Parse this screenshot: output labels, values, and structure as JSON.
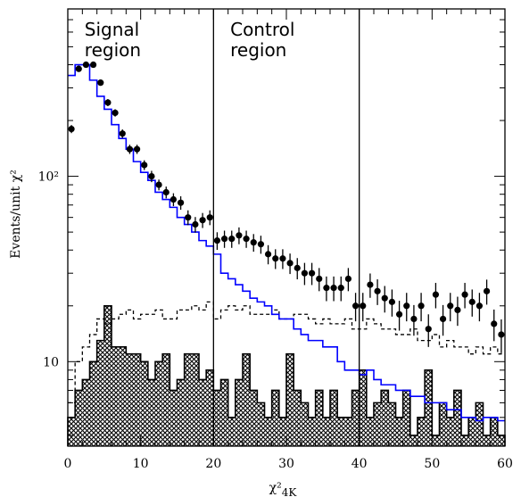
{
  "chart_data": {
    "type": "histogram",
    "ylabel": "Events/unit χ²",
    "xlabel": "χ²",
    "xlabel_subscript": "4K",
    "xlim": [
      0,
      60
    ],
    "ylim": [
      3.5,
      800
    ],
    "yscale": "log",
    "bin_width": 1,
    "x_ticks": [
      0,
      10,
      20,
      30,
      40,
      50,
      60
    ],
    "x_tick_labels": [
      "0",
      "10",
      "20",
      "30",
      "40",
      "50",
      "60"
    ],
    "y_ticks": [
      10,
      100
    ],
    "y_tick_labels": [
      "10",
      "10²"
    ],
    "region_boundaries": [
      20,
      40
    ],
    "annotations": [
      {
        "line1": "Signal",
        "line2": "region"
      },
      {
        "line1": "Control",
        "line2": "region"
      }
    ],
    "colors": {
      "mc_total": "#0000ff",
      "data": "#000000",
      "background": "#000000"
    },
    "series": [
      {
        "kind": "points",
        "values": [
          180,
          380,
          400,
          400,
          320,
          250,
          220,
          170,
          140,
          140,
          115,
          100,
          90,
          82,
          75,
          72,
          60,
          55,
          58,
          60,
          45,
          46,
          46,
          48,
          46,
          44,
          43,
          38,
          36,
          36,
          34,
          32,
          30,
          30,
          28,
          25,
          25,
          25,
          28,
          20,
          20,
          26,
          24,
          22,
          21,
          18,
          20,
          17,
          20,
          15,
          23,
          17,
          20,
          19,
          23,
          21,
          20,
          24,
          16,
          14
        ],
        "errors": [
          9,
          14,
          14,
          14,
          12,
          11,
          10,
          9,
          8,
          8,
          7,
          7,
          6,
          6,
          6,
          6,
          5.5,
          5.3,
          5.4,
          5.5,
          4.9,
          4.9,
          4.9,
          5,
          4.9,
          4.8,
          4.8,
          4.5,
          4.4,
          4.4,
          4.3,
          4.2,
          4.1,
          4.1,
          4,
          3.8,
          3.8,
          3.8,
          4,
          3.5,
          3.5,
          3.9,
          3.8,
          3.6,
          3.5,
          3.3,
          3.5,
          3.2,
          3.5,
          3,
          3.6,
          3.2,
          3.5,
          3.4,
          3.6,
          3.5,
          3.5,
          3.7,
          3.1,
          2.9
        ]
      },
      {
        "kind": "step-solid",
        "values": [
          350,
          400,
          400,
          330,
          270,
          230,
          190,
          160,
          140,
          120,
          105,
          95,
          82,
          75,
          68,
          60,
          55,
          50,
          45,
          42,
          38,
          30,
          28,
          26,
          24,
          22,
          21,
          20,
          18,
          17,
          17,
          15,
          14,
          13,
          13,
          12,
          12,
          10,
          9,
          9,
          8.5,
          9,
          8,
          7.5,
          7.5,
          7,
          7,
          6.5,
          6.5,
          6,
          6,
          6,
          5.5,
          5.5,
          5,
          5,
          4.8,
          5,
          5,
          4.8
        ]
      },
      {
        "kind": "step-dashed",
        "values": [
          6,
          10,
          12,
          14,
          17,
          16,
          17,
          18,
          19,
          17,
          18,
          18,
          19,
          17,
          17,
          19,
          19,
          20,
          19,
          21,
          17,
          19,
          20,
          19,
          20,
          18,
          18,
          18,
          19,
          17,
          17,
          18,
          18,
          17,
          16,
          17,
          16,
          16,
          17,
          15,
          15,
          17,
          16,
          15,
          15,
          14,
          14,
          15,
          13,
          13,
          14,
          12,
          13,
          12,
          12,
          11,
          12,
          11,
          12,
          11
        ]
      },
      {
        "kind": "step-hatched",
        "values": [
          5,
          7,
          8,
          10,
          13,
          20,
          12,
          12,
          11,
          11,
          10,
          8,
          10,
          11,
          7,
          8,
          11,
          11,
          8,
          9,
          7,
          8,
          5,
          8,
          11,
          7,
          6,
          5,
          7,
          5,
          11,
          7,
          6,
          5,
          7,
          5,
          7,
          5,
          5,
          7,
          9,
          5,
          6,
          7,
          6,
          5,
          7,
          4,
          5,
          9,
          4,
          6,
          5,
          7,
          4,
          5,
          6,
          4,
          5,
          4
        ]
      }
    ]
  }
}
